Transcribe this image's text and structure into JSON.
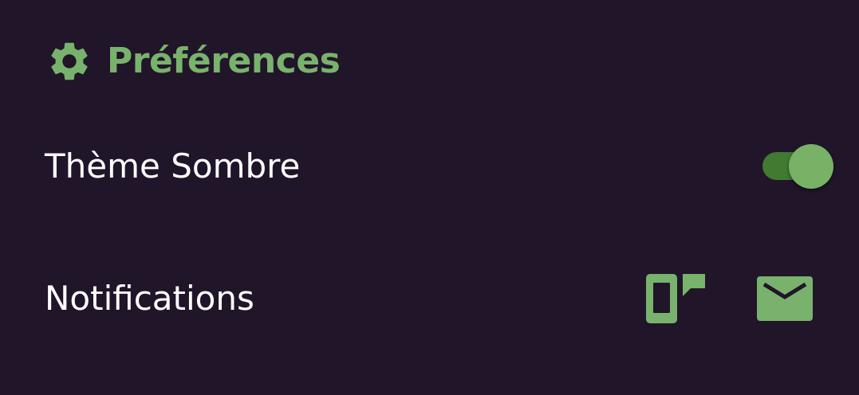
{
  "header": {
    "title": "Préférences",
    "icon": "gear-icon"
  },
  "settings": {
    "dark_theme": {
      "label": "Thème Sombre",
      "enabled": true
    },
    "notifications": {
      "label": "Notifications",
      "channels": [
        {
          "icon": "phone-message-icon"
        },
        {
          "icon": "mail-icon"
        }
      ]
    }
  },
  "colors": {
    "background": "#211529",
    "accent": "#79B26C",
    "toggle_track": "#417A31",
    "text": "#FFFFFF"
  }
}
